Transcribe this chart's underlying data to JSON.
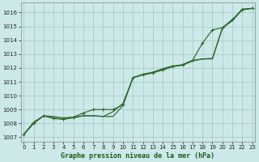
{
  "title": "Graphe pression niveau de la mer (hPa)",
  "bg_color": "#cce8e8",
  "grid_color": "#aacccc",
  "line_color": "#2d6a2d",
  "xlim": [
    -0.3,
    23.3
  ],
  "ylim": [
    1006.7,
    1016.7
  ],
  "xticks": [
    0,
    1,
    2,
    3,
    4,
    5,
    6,
    7,
    8,
    9,
    10,
    11,
    12,
    13,
    14,
    15,
    16,
    17,
    18,
    19,
    20,
    21,
    22,
    23
  ],
  "yticks": [
    1007,
    1008,
    1009,
    1010,
    1011,
    1012,
    1013,
    1014,
    1015,
    1016
  ],
  "x_hours": [
    0,
    1,
    2,
    3,
    4,
    5,
    6,
    7,
    8,
    9,
    10,
    11,
    12,
    13,
    14,
    15,
    16,
    17,
    18,
    19,
    20,
    21,
    22,
    23
  ],
  "series_marker": [
    1007.2,
    1008.0,
    1008.55,
    1008.35,
    1008.3,
    1008.45,
    1008.75,
    1009.0,
    1009.0,
    1009.0,
    1009.35,
    1011.3,
    1011.5,
    1011.65,
    1011.85,
    1012.1,
    1012.2,
    1012.55,
    1013.8,
    1014.75,
    1014.9,
    1015.5,
    1016.2,
    1016.3
  ],
  "series_smooth1": [
    1007.2,
    1008.0,
    1008.55,
    1008.4,
    1008.3,
    1008.4,
    1008.55,
    1008.55,
    1008.5,
    1008.85,
    1009.45,
    1011.3,
    1011.5,
    1011.65,
    1011.9,
    1012.1,
    1012.25,
    1012.55,
    1012.65,
    1012.7,
    1014.9,
    1015.4,
    1016.2,
    1016.3
  ],
  "series_smooth2": [
    1007.2,
    1008.1,
    1008.55,
    1008.5,
    1008.4,
    1008.45,
    1008.55,
    1008.55,
    1008.5,
    1008.5,
    1009.3,
    1011.3,
    1011.55,
    1011.7,
    1011.95,
    1012.15,
    1012.2,
    1012.5,
    1012.65,
    1012.65,
    1014.85,
    1015.45,
    1016.25,
    1016.3
  ]
}
